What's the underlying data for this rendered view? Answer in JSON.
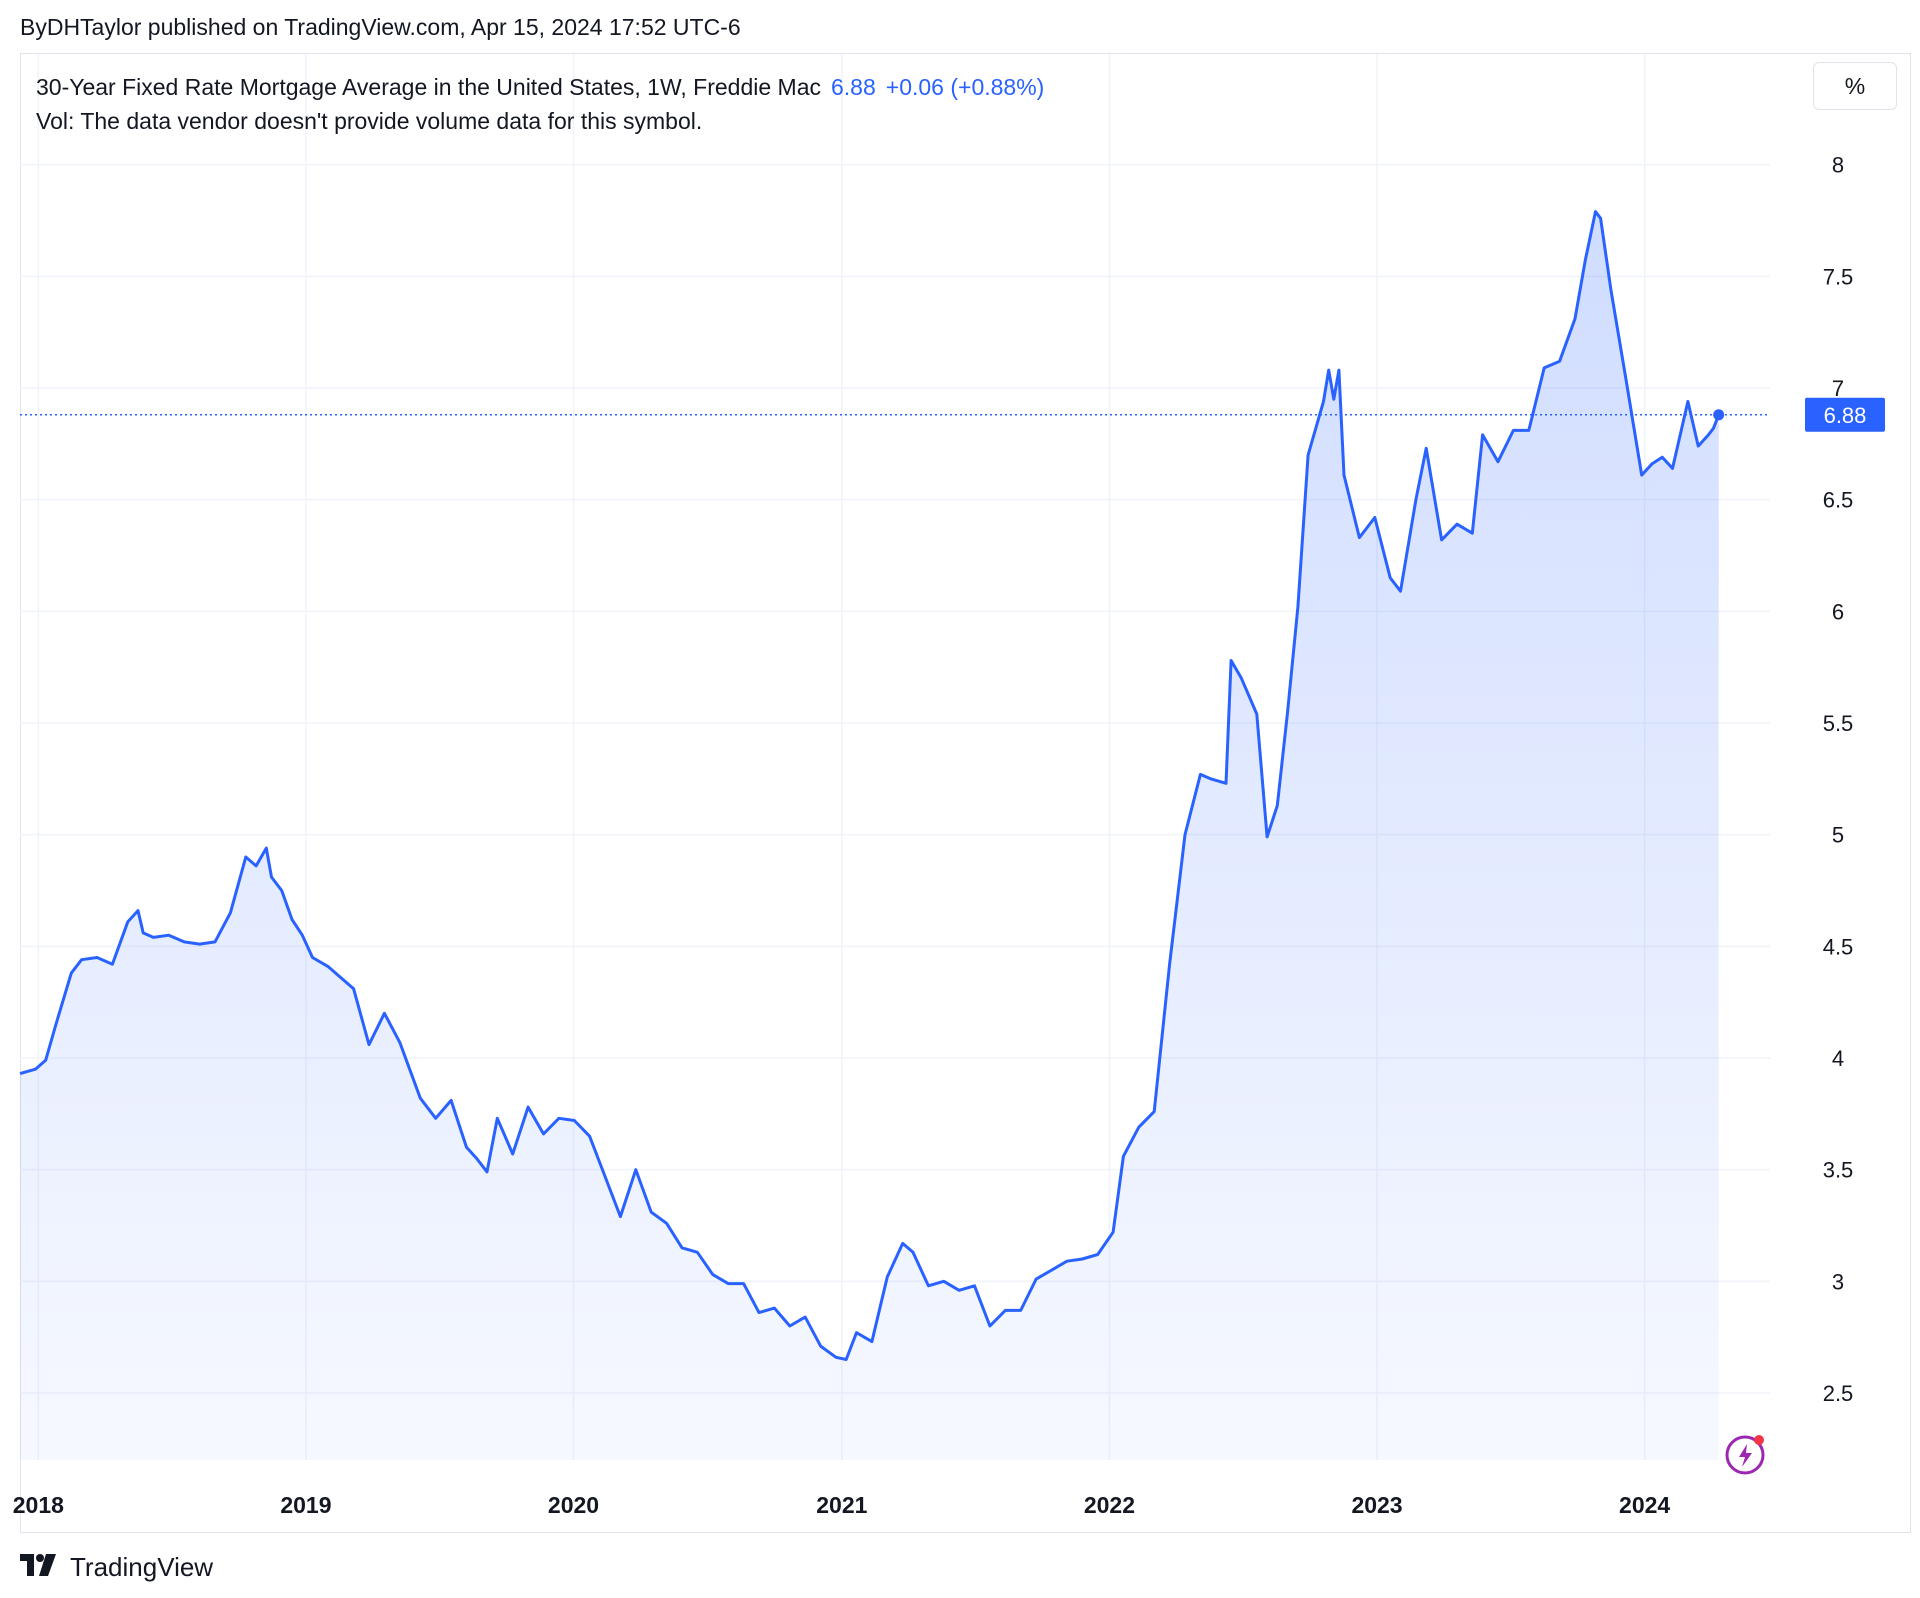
{
  "byline": "ByDHTaylor published on TradingView.com, Apr 15, 2024 17:52 UTC-6",
  "legend": {
    "title": "30-Year Fixed Rate Mortgage Average in the United States, 1W, Freddie Mac",
    "last": "6.88",
    "change": "+0.06 (+0.88%)",
    "vol_note": "Vol: The data vendor doesn't provide volume data for this symbol."
  },
  "scale_button": "%",
  "footer": {
    "brand": "TradingView"
  },
  "colors": {
    "line": "#2962ff",
    "grid": "#f0f3fa",
    "text": "#131722",
    "badge": "#2962ff"
  },
  "icons": {
    "logo": "tradingview-logo-icon",
    "bolt": "lightning-bolt-icon"
  },
  "chart_data": {
    "type": "area",
    "ylim": [
      2.2,
      8.2
    ],
    "xlim": [
      "2017-12-07",
      "2024-06-20"
    ],
    "y_ticks": [
      2.5,
      3,
      3.5,
      4,
      4.5,
      5,
      5.5,
      6,
      6.5,
      7,
      7.5,
      8
    ],
    "x_ticks": [
      "2018",
      "2019",
      "2020",
      "2021",
      "2022",
      "2023",
      "2024"
    ],
    "grid": true,
    "last_value_label": "6.88",
    "series": [
      {
        "x": [
          "2017-12-07",
          "2017-12-28",
          "2018-01-11",
          "2018-01-25",
          "2018-02-15",
          "2018-03-01",
          "2018-03-22",
          "2018-04-12",
          "2018-05-03",
          "2018-05-17",
          "2018-05-24",
          "2018-06-07",
          "2018-06-28",
          "2018-07-19",
          "2018-08-09",
          "2018-08-30",
          "2018-09-20",
          "2018-10-11",
          "2018-10-25",
          "2018-11-08",
          "2018-11-15",
          "2018-11-29",
          "2018-12-13",
          "2018-12-27",
          "2019-01-10",
          "2019-01-31",
          "2019-02-14",
          "2019-03-07",
          "2019-03-28",
          "2019-04-18",
          "2019-05-09",
          "2019-06-06",
          "2019-06-27",
          "2019-07-18",
          "2019-08-08",
          "2019-08-22",
          "2019-09-05",
          "2019-09-19",
          "2019-10-10",
          "2019-10-31",
          "2019-11-21",
          "2019-12-12",
          "2020-01-02",
          "2020-01-23",
          "2020-02-13",
          "2020-03-05",
          "2020-03-26",
          "2020-04-16",
          "2020-05-07",
          "2020-05-28",
          "2020-06-18",
          "2020-07-09",
          "2020-07-30",
          "2020-08-20",
          "2020-09-10",
          "2020-10-01",
          "2020-10-22",
          "2020-11-12",
          "2020-12-03",
          "2020-12-24",
          "2021-01-07",
          "2021-01-21",
          "2021-02-11",
          "2021-03-04",
          "2021-03-25",
          "2021-04-08",
          "2021-04-29",
          "2021-05-20",
          "2021-06-10",
          "2021-07-01",
          "2021-07-22",
          "2021-08-12",
          "2021-09-02",
          "2021-09-23",
          "2021-10-14",
          "2021-11-04",
          "2021-11-25",
          "2021-12-16",
          "2022-01-06",
          "2022-01-20",
          "2022-02-10",
          "2022-03-03",
          "2022-03-24",
          "2022-04-14",
          "2022-05-05",
          "2022-05-19",
          "2022-06-09",
          "2022-06-16",
          "2022-06-30",
          "2022-07-21",
          "2022-08-04",
          "2022-08-18",
          "2022-09-01",
          "2022-09-15",
          "2022-09-29",
          "2022-10-20",
          "2022-10-27",
          "2022-11-03",
          "2022-11-10",
          "2022-11-17",
          "2022-12-08",
          "2022-12-29",
          "2023-01-19",
          "2023-02-02",
          "2023-02-23",
          "2023-03-09",
          "2023-03-30",
          "2023-04-20",
          "2023-05-11",
          "2023-05-25",
          "2023-06-15",
          "2023-07-06",
          "2023-07-27",
          "2023-08-17",
          "2023-09-07",
          "2023-09-28",
          "2023-10-12",
          "2023-10-26",
          "2023-11-02",
          "2023-11-16",
          "2023-12-07",
          "2023-12-28",
          "2024-01-11",
          "2024-01-25",
          "2024-02-08",
          "2024-02-29",
          "2024-03-14",
          "2024-03-28",
          "2024-04-04",
          "2024-04-11"
        ],
        "values": [
          3.93,
          3.95,
          3.99,
          4.15,
          4.38,
          4.44,
          4.45,
          4.42,
          4.61,
          4.66,
          4.56,
          4.54,
          4.55,
          4.52,
          4.51,
          4.52,
          4.65,
          4.9,
          4.86,
          4.94,
          4.81,
          4.75,
          4.62,
          4.55,
          4.45,
          4.41,
          4.37,
          4.31,
          4.06,
          4.2,
          4.07,
          3.82,
          3.73,
          3.81,
          3.6,
          3.55,
          3.49,
          3.73,
          3.57,
          3.78,
          3.66,
          3.73,
          3.72,
          3.65,
          3.47,
          3.29,
          3.5,
          3.31,
          3.26,
          3.15,
          3.13,
          3.03,
          2.99,
          2.99,
          2.86,
          2.88,
          2.8,
          2.84,
          2.71,
          2.66,
          2.65,
          2.77,
          2.73,
          3.02,
          3.17,
          3.13,
          2.98,
          3.0,
          2.96,
          2.98,
          2.8,
          2.87,
          2.87,
          3.01,
          3.05,
          3.09,
          3.1,
          3.12,
          3.22,
          3.56,
          3.69,
          3.76,
          4.42,
          5.0,
          5.27,
          5.25,
          5.23,
          5.78,
          5.7,
          5.54,
          4.99,
          5.13,
          5.55,
          6.02,
          6.7,
          6.94,
          7.08,
          6.95,
          7.08,
          6.61,
          6.33,
          6.42,
          6.15,
          6.09,
          6.5,
          6.73,
          6.32,
          6.39,
          6.35,
          6.79,
          6.67,
          6.81,
          6.81,
          7.09,
          7.12,
          7.31,
          7.57,
          7.79,
          7.76,
          7.44,
          7.03,
          6.61,
          6.66,
          6.69,
          6.64,
          6.94,
          6.74,
          6.79,
          6.82,
          6.88
        ]
      }
    ]
  }
}
